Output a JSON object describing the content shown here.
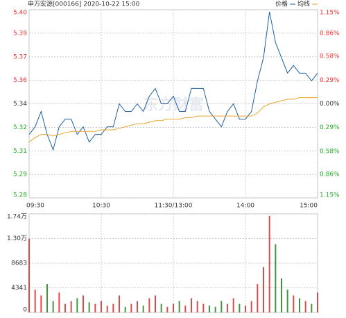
{
  "chart_data": [
    {
      "type": "line",
      "title": "申万宏源[000166] 2020-10-22 15:00",
      "watermark": "东方财富",
      "x": [
        0,
        5,
        10,
        15,
        20,
        25,
        30,
        35,
        40,
        45,
        50,
        55,
        60,
        65,
        70,
        75,
        80,
        85,
        90,
        95,
        100,
        105,
        110,
        115,
        120,
        125,
        130,
        135,
        140,
        145,
        150,
        155,
        160,
        165,
        170,
        175,
        180,
        185,
        190,
        195,
        200,
        205,
        210,
        215,
        220,
        225,
        230,
        235,
        240
      ],
      "xlim": [
        0,
        240
      ],
      "xticks": [
        {
          "value": 0,
          "label": "09:30"
        },
        {
          "value": 60,
          "label": "10:30"
        },
        {
          "value": 120,
          "label": "11:30/13:00"
        },
        {
          "value": 180,
          "label": "14:00"
        },
        {
          "value": 240,
          "label": "15:00"
        }
      ],
      "series": [
        {
          "name": "价格",
          "color": "#1f5fa0",
          "values": [
            5.32,
            5.325,
            5.335,
            5.32,
            5.31,
            5.325,
            5.33,
            5.33,
            5.32,
            5.325,
            5.315,
            5.32,
            5.32,
            5.325,
            5.325,
            5.34,
            5.335,
            5.335,
            5.34,
            5.335,
            5.345,
            5.35,
            5.34,
            5.34,
            5.345,
            5.335,
            5.335,
            5.35,
            5.35,
            5.35,
            5.335,
            5.33,
            5.325,
            5.335,
            5.34,
            5.33,
            5.33,
            5.335,
            5.355,
            5.37,
            5.4,
            5.38,
            5.37,
            5.36,
            5.365,
            5.36,
            5.36,
            5.355,
            5.36
          ]
        },
        {
          "name": "均线",
          "color": "#e8a530",
          "values": [
            5.315,
            5.318,
            5.32,
            5.32,
            5.319,
            5.32,
            5.321,
            5.322,
            5.322,
            5.322,
            5.322,
            5.322,
            5.323,
            5.323,
            5.323,
            5.324,
            5.325,
            5.326,
            5.327,
            5.327,
            5.328,
            5.329,
            5.329,
            5.33,
            5.33,
            5.33,
            5.331,
            5.331,
            5.332,
            5.332,
            5.332,
            5.332,
            5.332,
            5.332,
            5.332,
            5.332,
            5.332,
            5.332,
            5.334,
            5.338,
            5.34,
            5.341,
            5.342,
            5.343,
            5.343,
            5.344,
            5.344,
            5.344,
            5.344
          ]
        }
      ],
      "ylim": [
        5.2786,
        5.4014
      ],
      "yticks": [
        {
          "value": 5.4014,
          "label": "5.40"
        },
        {
          "value": 5.3861,
          "label": "5.39"
        },
        {
          "value": 5.3707,
          "label": "5.37"
        },
        {
          "value": 5.3554,
          "label": "5.36"
        },
        5.34,
        {
          "value": 5.3246,
          "label": "5.32"
        },
        {
          "value": 5.3093,
          "label": "5.31"
        },
        {
          "value": 5.2939,
          "label": "5.29"
        },
        {
          "value": 5.2786,
          "label": "5.28"
        }
      ],
      "y2lim": [
        -1.15,
        1.15
      ],
      "y2ticks": [
        {
          "value": 1.15,
          "label": "1.15%"
        },
        {
          "value": 0.86,
          "label": "0.86%"
        },
        {
          "value": 0.58,
          "label": "0.58%"
        },
        {
          "value": 0.29,
          "label": "0.29%"
        },
        {
          "value": 0,
          "label": "0.00%"
        },
        {
          "value": -0.29,
          "label": "0.29%"
        },
        {
          "value": -0.58,
          "label": "0.58%"
        },
        {
          "value": -0.86,
          "label": "0.86%"
        },
        {
          "value": -1.15,
          "label": "1.15%"
        }
      ],
      "grid": true
    },
    {
      "type": "bar",
      "x": [
        0,
        5,
        10,
        15,
        20,
        25,
        30,
        35,
        40,
        45,
        50,
        55,
        60,
        65,
        70,
        75,
        80,
        85,
        90,
        95,
        100,
        105,
        110,
        115,
        120,
        125,
        130,
        135,
        140,
        145,
        150,
        155,
        160,
        165,
        170,
        175,
        180,
        185,
        190,
        195,
        200,
        205,
        210,
        215,
        220,
        225,
        230,
        235,
        240
      ],
      "xlim": [
        0,
        240
      ],
      "values": [
        13000,
        4000,
        3000,
        5000,
        2000,
        3500,
        1500,
        2000,
        2500,
        3000,
        1800,
        1500,
        2000,
        1200,
        1500,
        3000,
        1000,
        1500,
        2000,
        1200,
        2500,
        3000,
        1500,
        1000,
        1500,
        2000,
        1200,
        2500,
        2000,
        1500,
        1200,
        1000,
        2000,
        1500,
        2500,
        1500,
        1200,
        2000,
        5000,
        8000,
        17000,
        12000,
        6000,
        4000,
        3000,
        2500,
        2000,
        1500,
        3500
      ],
      "up_color": "#e94545",
      "down_color": "#3a9a3a",
      "ylim": [
        0,
        17366
      ],
      "yticks": [
        0,
        4341,
        8683,
        {
          "value": 13024,
          "label": "1.30万"
        },
        {
          "value": 17366,
          "label": "1.74万"
        }
      ],
      "grid": true
    }
  ]
}
